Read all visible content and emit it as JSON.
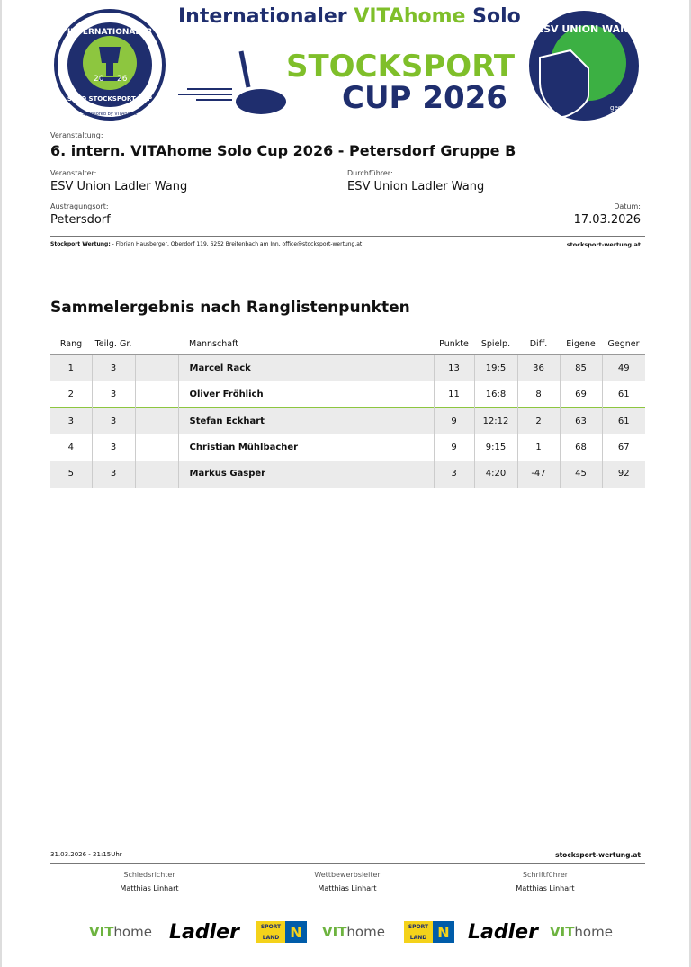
{
  "header": {
    "line1_a": "Internationaler",
    "line1_brand": "VITAhome",
    "line1_b": "Solo",
    "line2": "STOCKSPORT",
    "line3": "CUP 2026",
    "left_logo": {
      "top": "INTERNATIONALER",
      "bottom": "SOLO STOCKSPORT CUP",
      "year_a": "20",
      "year_b": "26",
      "sponsor": "Sponsored by VITAhome"
    },
    "right_logo": {
      "top": "ESV UNION WANG",
      "bottom": "gegr. 1975"
    }
  },
  "event": {
    "veranstaltung_label": "Veranstaltung:",
    "veranstaltung": "6. intern. VITAhome Solo Cup 2026 - Petersdorf Gruppe B",
    "veranstalter_label": "Veranstalter:",
    "veranstalter": "ESV Union Ladler Wang",
    "durchfuehrer_label": "Durchführer:",
    "durchfuehrer": "ESV Union Ladler Wang",
    "ort_label": "Austragungsort:",
    "ort": "Petersdorf",
    "datum_label": "Datum:",
    "datum": "17.03.2026"
  },
  "infoline": {
    "bold": "Stockport Wertung:",
    "text": " - Florian Hausberger, Oberdorf 119, 6252 Breitenbach am Inn, office@stocksport-wertung.at",
    "site": "stocksport-wertung.at"
  },
  "section_title": "Sammelergebnis nach Ranglistenpunkten",
  "table": {
    "headers": [
      "Rang",
      "Teilg. Gr.",
      "",
      "Mannschaft",
      "Punkte",
      "Spielp.",
      "Diff.",
      "Eigene",
      "Gegner"
    ],
    "rows": [
      [
        "1",
        "3",
        "",
        "Marcel Rack",
        "13",
        "19:5",
        "36",
        "85",
        "49"
      ],
      [
        "2",
        "3",
        "",
        "Oliver Fröhlich",
        "11",
        "16:8",
        "8",
        "69",
        "61"
      ],
      [
        "3",
        "3",
        "",
        "Stefan Eckhart",
        "9",
        "12:12",
        "2",
        "63",
        "61"
      ],
      [
        "4",
        "3",
        "",
        "Christian Mühlbacher",
        "9",
        "9:15",
        "1",
        "68",
        "67"
      ],
      [
        "5",
        "3",
        "",
        "Markus Gasper",
        "3",
        "4:20",
        "-47",
        "45",
        "92"
      ]
    ]
  },
  "footer": {
    "timestamp": "31.03.2026 - 21:15Uhr",
    "site": "stocksport-wertung.at",
    "signatures": [
      {
        "role": "Schiedsrichter",
        "name": "Matthias Linhart"
      },
      {
        "role": "Wettbewerbsleiter",
        "name": "Matthias Linhart"
      },
      {
        "role": "Schriftführer",
        "name": "Matthias Linhart"
      }
    ]
  },
  "sponsors": {
    "vita": "VIT",
    "vita2": "home",
    "ladler": "Ladler",
    "sl_a": "SPORT",
    "sl_b": "LAND",
    "sl_n": "N"
  },
  "colors": {
    "navy": "#1f2e6e",
    "green": "#7fbf2a"
  }
}
